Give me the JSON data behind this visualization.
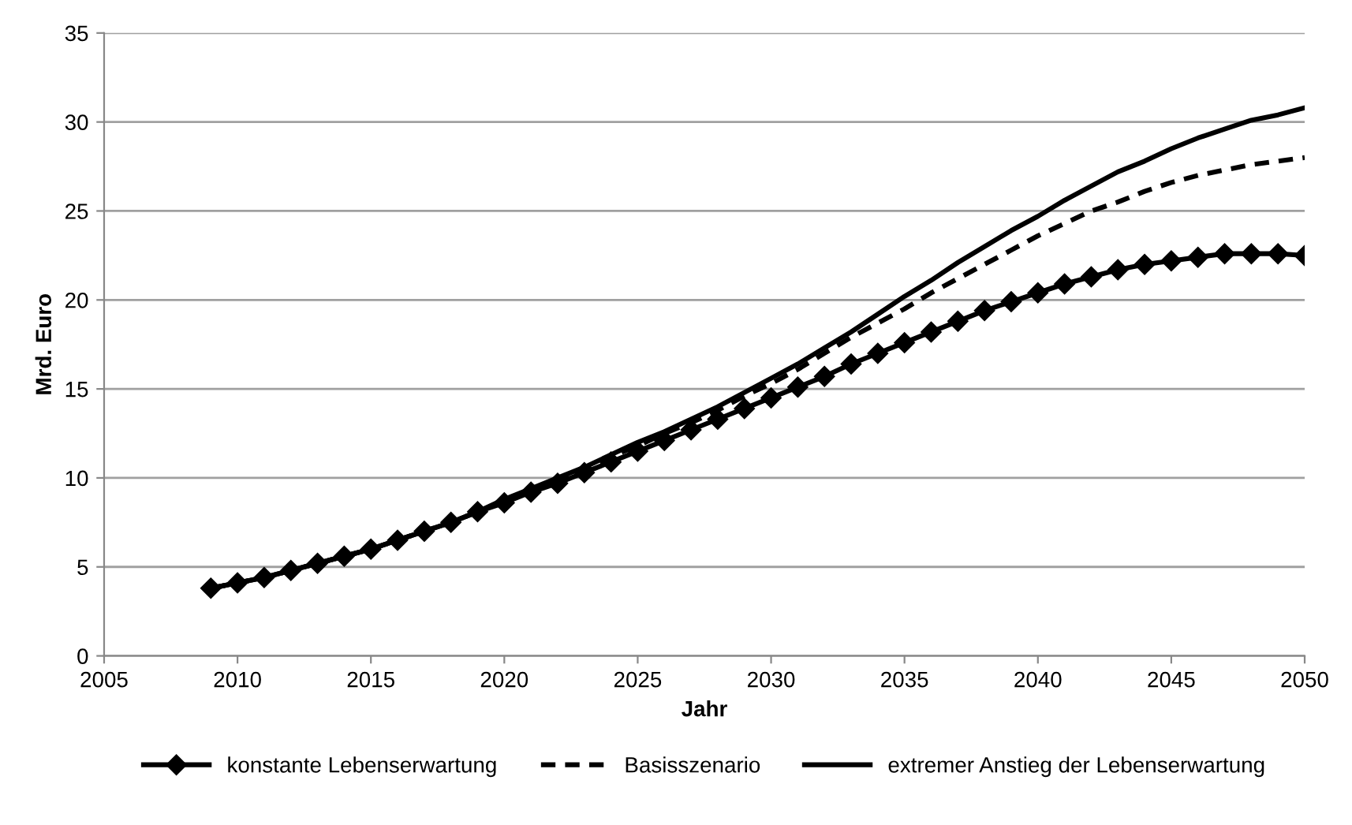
{
  "chart_data": {
    "type": "line",
    "xlabel": "Jahr",
    "ylabel": "Mrd. Euro",
    "x": [
      2009,
      2010,
      2011,
      2012,
      2013,
      2014,
      2015,
      2016,
      2017,
      2018,
      2019,
      2020,
      2021,
      2022,
      2023,
      2024,
      2025,
      2026,
      2027,
      2028,
      2029,
      2030,
      2031,
      2032,
      2033,
      2034,
      2035,
      2036,
      2037,
      2038,
      2039,
      2040,
      2041,
      2042,
      2043,
      2044,
      2045,
      2046,
      2047,
      2048,
      2049,
      2050
    ],
    "series": [
      {
        "name": "konstante Lebenserwartung",
        "color": "#000000",
        "marker": "diamond",
        "line_style": "solid",
        "values": [
          3.8,
          4.1,
          4.4,
          4.8,
          5.2,
          5.6,
          6.0,
          6.5,
          7.0,
          7.5,
          8.1,
          8.6,
          9.2,
          9.7,
          10.3,
          10.9,
          11.5,
          12.1,
          12.7,
          13.3,
          13.9,
          14.5,
          15.1,
          15.7,
          16.4,
          17.0,
          17.6,
          18.2,
          18.8,
          19.4,
          19.9,
          20.4,
          20.9,
          21.3,
          21.7,
          22.0,
          22.2,
          22.4,
          22.6,
          22.6,
          22.6,
          22.5
        ]
      },
      {
        "name": "Basisszenario",
        "color": "#000000",
        "marker": "none",
        "line_style": "dashed",
        "values": [
          3.8,
          4.1,
          4.4,
          4.8,
          5.2,
          5.6,
          6.0,
          6.5,
          7.0,
          7.5,
          8.1,
          8.7,
          9.3,
          9.9,
          10.5,
          11.2,
          11.8,
          12.5,
          13.1,
          13.8,
          14.6,
          15.3,
          16.1,
          17.0,
          17.9,
          18.7,
          19.5,
          20.4,
          21.2,
          22.0,
          22.8,
          23.6,
          24.3,
          25.0,
          25.5,
          26.1,
          26.6,
          27.0,
          27.3,
          27.6,
          27.8,
          28.0
        ]
      },
      {
        "name": "extremer Anstieg der Lebenserwartung",
        "color": "#000000",
        "marker": "none",
        "line_style": "solid",
        "values": [
          3.8,
          4.1,
          4.4,
          4.8,
          5.2,
          5.6,
          6.0,
          6.5,
          7.0,
          7.5,
          8.1,
          8.8,
          9.4,
          10.0,
          10.6,
          11.3,
          12.0,
          12.6,
          13.3,
          14.0,
          14.8,
          15.6,
          16.4,
          17.3,
          18.2,
          19.2,
          20.2,
          21.1,
          22.1,
          23.0,
          23.9,
          24.7,
          25.6,
          26.4,
          27.2,
          27.8,
          28.5,
          29.1,
          29.6,
          30.1,
          30.4,
          30.8
        ]
      }
    ],
    "xlim": [
      2005,
      2050
    ],
    "xticks": [
      2005,
      2010,
      2015,
      2020,
      2025,
      2030,
      2035,
      2040,
      2045,
      2050
    ],
    "ylim": [
      0,
      35
    ],
    "yticks": [
      0,
      5,
      10,
      15,
      20,
      25,
      30,
      35
    ],
    "grid": "y",
    "legend": "bottom"
  }
}
